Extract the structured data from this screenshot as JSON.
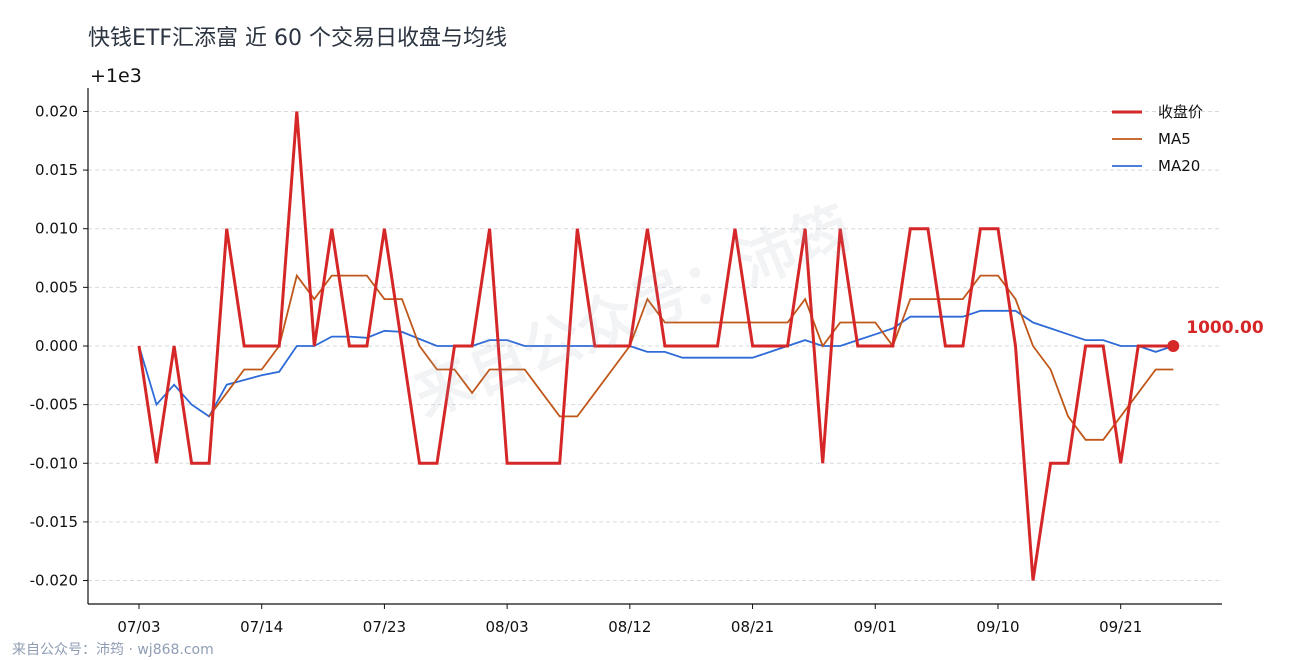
{
  "chart_data": {
    "type": "line",
    "title": "快钱ETF汇添富 近 60 个交易日收盘与均线",
    "offset_label": "+1e3",
    "ylim": [
      -0.022,
      0.022
    ],
    "y_ticks": [
      0.02,
      0.015,
      0.01,
      0.005,
      0.0,
      -0.005,
      -0.01,
      -0.015,
      -0.02
    ],
    "y_tick_labels": [
      "0.020",
      "0.015",
      "0.010",
      "0.005",
      "0.000",
      "-0.005",
      "-0.010",
      "-0.015",
      "-0.020"
    ],
    "x_ticks": [
      {
        "index": 0,
        "label": "07/03"
      },
      {
        "index": 7,
        "label": "07/14"
      },
      {
        "index": 14,
        "label": "07/23"
      },
      {
        "index": 21,
        "label": "08/03"
      },
      {
        "index": 28,
        "label": "08/12"
      },
      {
        "index": 35,
        "label": "08/21"
      },
      {
        "index": 42,
        "label": "09/01"
      },
      {
        "index": 49,
        "label": "09/10"
      },
      {
        "index": 56,
        "label": "09/21"
      }
    ],
    "grid": "horizontal-dashed",
    "legend_position": "top-right",
    "series": [
      {
        "name": "收盘价",
        "color": "#d62728",
        "values": [
          0,
          -0.01,
          0,
          -0.01,
          -0.01,
          0.01,
          0,
          0,
          0,
          0.02,
          0,
          0.01,
          0,
          0,
          0.01,
          0,
          -0.01,
          -0.01,
          0,
          0,
          0.01,
          -0.01,
          -0.01,
          -0.01,
          -0.01,
          0.01,
          0,
          0,
          0,
          0.01,
          0,
          0,
          0,
          0,
          0.01,
          0,
          0,
          0,
          0.01,
          -0.01,
          0.01,
          0,
          0,
          0,
          0.01,
          0.01,
          0,
          0,
          0.01,
          0.01,
          0,
          -0.02,
          -0.01,
          -0.01,
          0,
          0,
          -0.01,
          0,
          0,
          0
        ]
      },
      {
        "name": "MA5",
        "color": "#c0571a",
        "values": [
          null,
          null,
          null,
          null,
          -0.006,
          -0.004,
          -0.002,
          -0.002,
          0,
          0.006,
          0.004,
          0.006,
          0.006,
          0.006,
          0.004,
          0.004,
          0,
          -0.002,
          -0.002,
          -0.004,
          -0.002,
          -0.002,
          -0.002,
          -0.004,
          -0.006,
          -0.006,
          -0.004,
          -0.002,
          0,
          0.004,
          0.002,
          0.002,
          0.002,
          0.002,
          0.002,
          0.002,
          0.002,
          0.002,
          0.004,
          0,
          0.002,
          0.002,
          0.002,
          0,
          0.004,
          0.004,
          0.004,
          0.004,
          0.006,
          0.006,
          0.004,
          0,
          -0.002,
          -0.006,
          -0.008,
          -0.008,
          -0.006,
          -0.004,
          -0.002,
          -0.002
        ]
      },
      {
        "name": "MA20",
        "color": "#2f6bd8",
        "values": [
          0,
          -0.005,
          -0.0033,
          -0.005,
          -0.006,
          -0.0033,
          -0.0029,
          -0.0025,
          -0.0022,
          0,
          0,
          0.0008,
          0.0008,
          0.0007,
          0.0013,
          0.0012,
          0.0006,
          0,
          0,
          0,
          0.0005,
          0.0005,
          0,
          0,
          0,
          0,
          0,
          0,
          0,
          -0.0005,
          -0.0005,
          -0.001,
          -0.001,
          -0.001,
          -0.001,
          -0.001,
          -0.0005,
          0,
          0.0005,
          0,
          0,
          0.0005,
          0.001,
          0.0015,
          0.0025,
          0.0025,
          0.0025,
          0.0025,
          0.003,
          0.003,
          0.003,
          0.002,
          0.0015,
          0.001,
          0.0005,
          0.0005,
          0,
          0,
          -0.0005,
          0
        ]
      }
    ],
    "last_value_label": "1000.00"
  },
  "watermark": "来自公众号：沛筠",
  "credit": "来自公众号：沛筠 · wj868.com"
}
